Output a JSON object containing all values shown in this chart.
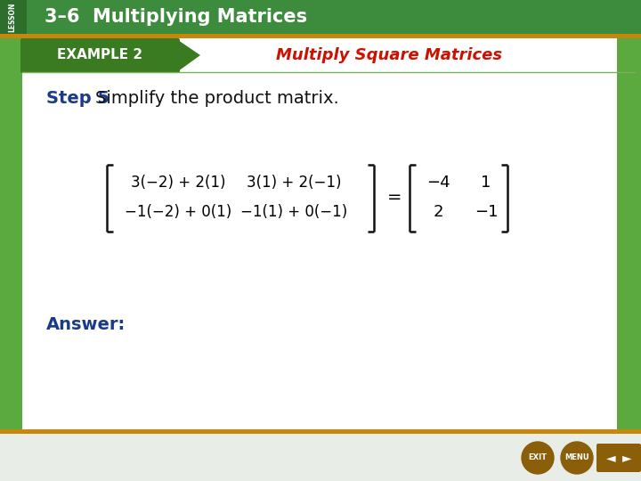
{
  "title_bar_color": "#3d8b3d",
  "title_bar_gradient_end": "#5cb85c",
  "title_bar_text": "3–6  Multiplying Matrices",
  "title_bar_text_color": "#ffffff",
  "lesson_tab_color": "#2d6e2d",
  "lesson_text": "LESSON",
  "example_bar_color": "#4a9e2f",
  "example_label": "EXAMPLE 2",
  "example_label_bg": "#3a7a20",
  "example_label_color": "#ffffff",
  "example_title": "Multiply Square Matrices",
  "example_title_color": "#cc1100",
  "step_label": "Step 5",
  "step_label_color": "#1a3a8a",
  "step_text": "   Simplify the product matrix.",
  "step_text_color": "#111111",
  "answer_label": "Answer:",
  "answer_label_color": "#1a3a8a",
  "bg_color": "#e8ede8",
  "content_bg": "#ffffff",
  "border_color": "#7ab05a",
  "matrix_left_r1c1": "3(−2) + 2(1)",
  "matrix_left_r1c2": "3(1) + 2(−1)",
  "matrix_left_r2c1": "−1(−2) + 0(1)",
  "matrix_left_r2c2": "−1(1) + 0(−1)",
  "matrix_right_r1c1": "−4",
  "matrix_right_r1c2": "1",
  "matrix_right_r2c1": "2",
  "matrix_right_r2c2": "−1",
  "gold_color": "#c8860a",
  "button_color": "#8B5E0A",
  "side_bar_color": "#5aaa40"
}
